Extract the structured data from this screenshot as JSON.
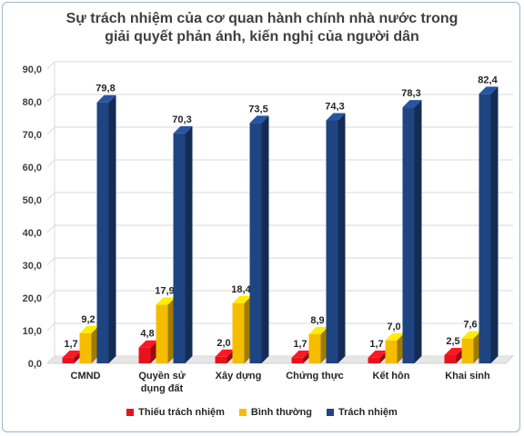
{
  "chart_data": {
    "type": "bar",
    "title_lines": [
      "Sự trách nhiệm của cơ quan hành chính nhà nước trong",
      "giải quyết phản ánh, kiến nghị của người dân"
    ],
    "categories": [
      [
        "CMND"
      ],
      [
        "Quyền sử",
        "dụng đất"
      ],
      [
        "Xây dựng"
      ],
      [
        "Chứng thực"
      ],
      [
        "Kết hôn"
      ],
      [
        "Khai sinh"
      ]
    ],
    "series": [
      {
        "name": "Thiếu trách nhiệm",
        "color": "#e8121c",
        "values": [
          1.7,
          4.8,
          2.0,
          1.7,
          1.7,
          2.5
        ],
        "labels": [
          "1,7",
          "4,8",
          "2,0",
          "1,7",
          "1,7",
          "2,5"
        ]
      },
      {
        "name": "Bình thường",
        "color": "#f5bd00",
        "values": [
          9.2,
          17.9,
          18.4,
          8.9,
          7.0,
          7.6
        ],
        "labels": [
          "9,2",
          "17,9",
          "18,4",
          "8,9",
          "7,0",
          "7,6"
        ]
      },
      {
        "name": "Trách nhiệm",
        "color": "#1f4482",
        "values": [
          79.8,
          70.3,
          73.5,
          74.3,
          78.3,
          82.4
        ],
        "labels": [
          "79,8",
          "70,3",
          "73,5",
          "74,3",
          "78,3",
          "82,4"
        ]
      }
    ],
    "ylim": [
      0,
      90
    ],
    "yticks": [
      {
        "value": 0,
        "label": "0,0"
      },
      {
        "value": 10,
        "label": "10,0"
      },
      {
        "value": 20,
        "label": "20,0"
      },
      {
        "value": 30,
        "label": "30,0"
      },
      {
        "value": 40,
        "label": "40,0"
      },
      {
        "value": 50,
        "label": "50,0"
      },
      {
        "value": 60,
        "label": "60,0"
      },
      {
        "value": 70,
        "label": "70,0"
      },
      {
        "value": 80,
        "label": "80,0"
      },
      {
        "value": 90,
        "label": "90,0"
      }
    ],
    "grid": true,
    "legend_position": "bottom",
    "style": "3d-clustered-column"
  }
}
